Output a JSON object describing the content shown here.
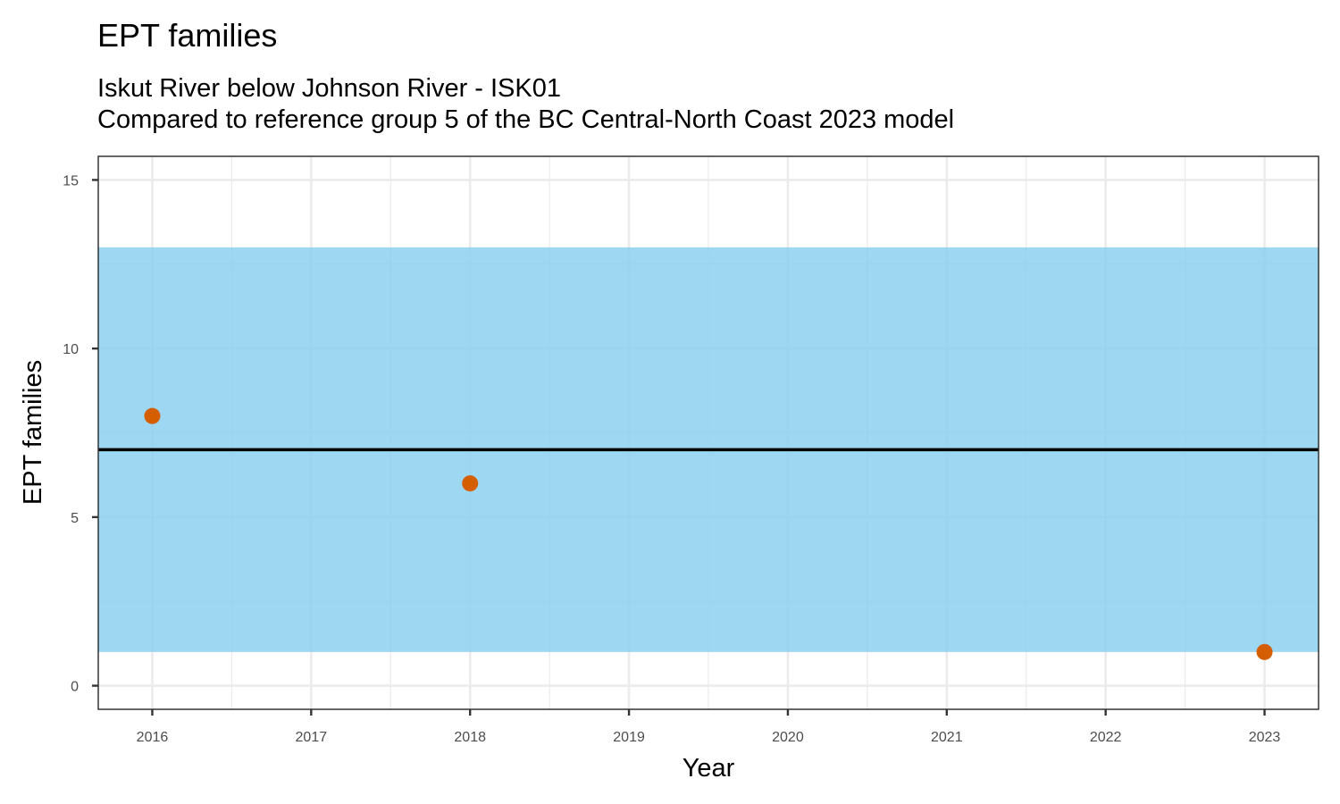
{
  "chart_data": {
    "type": "scatter",
    "title": "EPT families",
    "subtitle_lines": [
      "Iskut River below Johnson River - ISK01",
      "Compared to reference group 5 of the BC Central-North Coast 2023 model"
    ],
    "xlabel": "Year",
    "ylabel": "EPT families",
    "x_ticks": [
      "2016",
      "2017",
      "2018",
      "2019",
      "2020",
      "2021",
      "2022",
      "2023"
    ],
    "y_ticks": [
      "0",
      "5",
      "10",
      "15"
    ],
    "xlim": [
      2015.66,
      2023.34
    ],
    "ylim": [
      -0.7,
      15.7
    ],
    "grid": true,
    "reference_band": {
      "lower": 1,
      "upper": 13,
      "color": "#87ceee"
    },
    "reference_line": {
      "value": 7,
      "color": "#000000"
    },
    "series": [
      {
        "color": "#d55e00",
        "points": [
          {
            "x": 2016,
            "y": 8
          },
          {
            "x": 2018,
            "y": 6
          },
          {
            "x": 2023,
            "y": 1
          }
        ]
      }
    ]
  }
}
